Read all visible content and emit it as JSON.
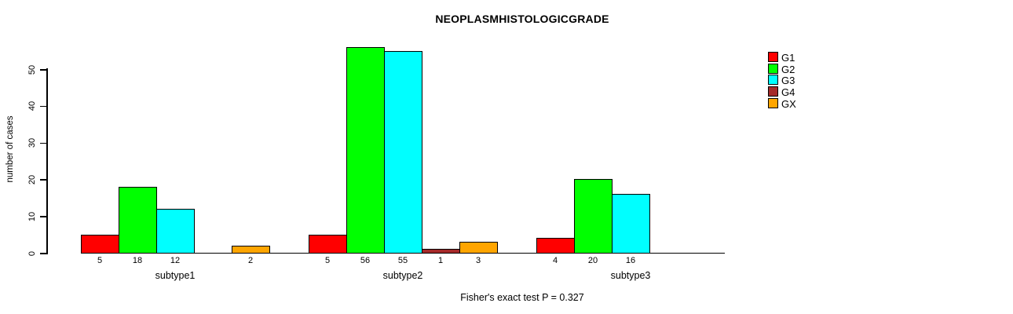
{
  "chart_data": {
    "type": "bar",
    "title": "NEOPLASMHISTOLOGICGRADE",
    "ylabel": "number of cases",
    "xlabel": "",
    "categories": [
      "subtype1",
      "subtype2",
      "subtype3"
    ],
    "series": [
      {
        "name": "G1",
        "color": "#ff0000",
        "values": [
          5,
          5,
          4
        ]
      },
      {
        "name": "G2",
        "color": "#00ff00",
        "values": [
          18,
          56,
          20
        ]
      },
      {
        "name": "G3",
        "color": "#00ffff",
        "values": [
          12,
          55,
          16
        ]
      },
      {
        "name": "G4",
        "color": "#a52a2a",
        "values": [
          0,
          1,
          0
        ]
      },
      {
        "name": "GX",
        "color": "#ffa500",
        "values": [
          2,
          3,
          0
        ]
      }
    ],
    "yticks": [
      0,
      10,
      20,
      30,
      40,
      50
    ],
    "ylim": [
      0,
      56
    ],
    "grid": false,
    "bar_value_labels_shown": true,
    "zero_value_bars_hidden": true,
    "legend_position": "top-right",
    "annotation": "Fisher's exact test P = 0.327"
  }
}
